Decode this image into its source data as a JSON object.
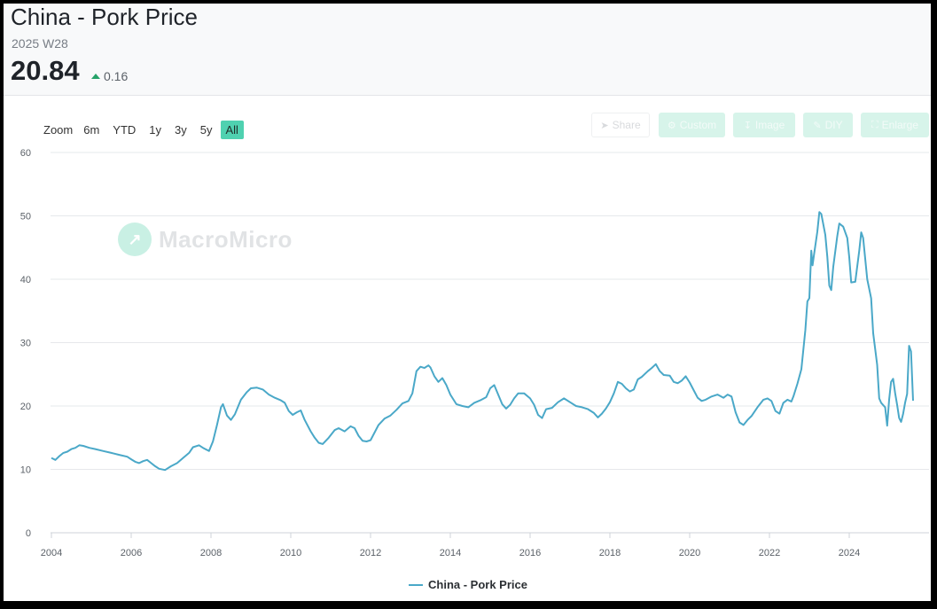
{
  "header": {
    "title": "China - Pork Price",
    "period": "2025 W28",
    "value": "20.84",
    "change": "0.16"
  },
  "zoom": {
    "label": "Zoom",
    "buttons": [
      "6m",
      "YTD",
      "1y",
      "3y",
      "5y",
      "All"
    ],
    "active": "All"
  },
  "tools": {
    "share": "Share",
    "custom": "Custom",
    "image": "Image",
    "diy": "DIY",
    "enlarge": "Enlarge"
  },
  "watermark": "MacroMicro",
  "colors": {
    "line": "#4aa8c8",
    "zoom_active": "#4fd1b0",
    "up": "#26a269"
  },
  "chart_data": {
    "type": "line",
    "xlim": [
      2004,
      2025.6
    ],
    "ylim": [
      0,
      60
    ],
    "yticks": [
      0,
      10,
      20,
      30,
      40,
      50,
      60
    ],
    "xticks": [
      2004,
      2006,
      2008,
      2010,
      2012,
      2014,
      2016,
      2018,
      2020,
      2022,
      2024
    ],
    "grid": "horizontal",
    "legend": "bottom-center",
    "series": [
      {
        "name": "China - Pork Price",
        "points": [
          [
            2004.0,
            11.8
          ],
          [
            2004.1,
            11.5
          ],
          [
            2004.2,
            12.1
          ],
          [
            2004.3,
            12.6
          ],
          [
            2004.4,
            12.8
          ],
          [
            2004.5,
            13.2
          ],
          [
            2004.6,
            13.4
          ],
          [
            2004.7,
            13.8
          ],
          [
            2004.8,
            13.7
          ],
          [
            2004.95,
            13.4
          ],
          [
            2005.1,
            13.2
          ],
          [
            2005.3,
            12.9
          ],
          [
            2005.5,
            12.6
          ],
          [
            2005.7,
            12.3
          ],
          [
            2005.9,
            12.0
          ],
          [
            2006.0,
            11.6
          ],
          [
            2006.1,
            11.2
          ],
          [
            2006.2,
            11.0
          ],
          [
            2006.3,
            11.3
          ],
          [
            2006.4,
            11.5
          ],
          [
            2006.5,
            11.0
          ],
          [
            2006.6,
            10.5
          ],
          [
            2006.7,
            10.1
          ],
          [
            2006.85,
            9.9
          ],
          [
            2007.0,
            10.5
          ],
          [
            2007.15,
            11.0
          ],
          [
            2007.3,
            11.8
          ],
          [
            2007.45,
            12.6
          ],
          [
            2007.55,
            13.5
          ],
          [
            2007.7,
            13.8
          ],
          [
            2007.8,
            13.4
          ],
          [
            2007.95,
            12.9
          ],
          [
            2008.05,
            14.4
          ],
          [
            2008.15,
            17.0
          ],
          [
            2008.25,
            19.8
          ],
          [
            2008.3,
            20.3
          ],
          [
            2008.4,
            18.5
          ],
          [
            2008.5,
            17.8
          ],
          [
            2008.6,
            18.7
          ],
          [
            2008.75,
            21.0
          ],
          [
            2008.9,
            22.2
          ],
          [
            2009.0,
            22.8
          ],
          [
            2009.15,
            22.9
          ],
          [
            2009.3,
            22.6
          ],
          [
            2009.45,
            21.8
          ],
          [
            2009.6,
            21.3
          ],
          [
            2009.75,
            20.9
          ],
          [
            2009.85,
            20.5
          ],
          [
            2009.95,
            19.2
          ],
          [
            2010.05,
            18.6
          ],
          [
            2010.15,
            19.0
          ],
          [
            2010.25,
            19.3
          ],
          [
            2010.35,
            17.8
          ],
          [
            2010.5,
            16.0
          ],
          [
            2010.6,
            15.0
          ],
          [
            2010.7,
            14.2
          ],
          [
            2010.8,
            14.0
          ],
          [
            2010.95,
            15.0
          ],
          [
            2011.1,
            16.2
          ],
          [
            2011.2,
            16.5
          ],
          [
            2011.35,
            16.0
          ],
          [
            2011.5,
            16.8
          ],
          [
            2011.6,
            16.5
          ],
          [
            2011.7,
            15.3
          ],
          [
            2011.8,
            14.5
          ],
          [
            2011.9,
            14.4
          ],
          [
            2012.0,
            14.6
          ],
          [
            2012.1,
            15.8
          ],
          [
            2012.2,
            17.0
          ],
          [
            2012.35,
            18.0
          ],
          [
            2012.5,
            18.5
          ],
          [
            2012.65,
            19.4
          ],
          [
            2012.8,
            20.4
          ],
          [
            2012.95,
            20.8
          ],
          [
            2013.05,
            22.0
          ],
          [
            2013.15,
            25.5
          ],
          [
            2013.25,
            26.2
          ],
          [
            2013.35,
            26.0
          ],
          [
            2013.45,
            26.4
          ],
          [
            2013.5,
            26.1
          ],
          [
            2013.6,
            24.7
          ],
          [
            2013.7,
            23.8
          ],
          [
            2013.8,
            24.4
          ],
          [
            2013.9,
            23.3
          ],
          [
            2014.0,
            21.8
          ],
          [
            2014.15,
            20.3
          ],
          [
            2014.3,
            20.0
          ],
          [
            2014.45,
            19.8
          ],
          [
            2014.6,
            20.5
          ],
          [
            2014.75,
            20.9
          ],
          [
            2014.9,
            21.4
          ],
          [
            2015.0,
            22.8
          ],
          [
            2015.1,
            23.3
          ],
          [
            2015.2,
            21.8
          ],
          [
            2015.3,
            20.3
          ],
          [
            2015.4,
            19.6
          ],
          [
            2015.5,
            20.2
          ],
          [
            2015.6,
            21.2
          ],
          [
            2015.7,
            22.0
          ],
          [
            2015.85,
            22.0
          ],
          [
            2016.0,
            21.2
          ],
          [
            2016.1,
            20.2
          ],
          [
            2016.2,
            18.6
          ],
          [
            2016.3,
            18.1
          ],
          [
            2016.4,
            19.5
          ],
          [
            2016.55,
            19.7
          ],
          [
            2016.7,
            20.6
          ],
          [
            2016.85,
            21.2
          ],
          [
            2017.0,
            20.6
          ],
          [
            2017.15,
            20.0
          ],
          [
            2017.3,
            19.8
          ],
          [
            2017.45,
            19.5
          ],
          [
            2017.6,
            18.9
          ],
          [
            2017.7,
            18.2
          ],
          [
            2017.8,
            18.8
          ],
          [
            2017.9,
            19.6
          ],
          [
            2018.0,
            20.6
          ],
          [
            2018.1,
            22.0
          ],
          [
            2018.2,
            23.8
          ],
          [
            2018.3,
            23.5
          ],
          [
            2018.4,
            22.8
          ],
          [
            2018.5,
            22.3
          ],
          [
            2018.6,
            22.6
          ],
          [
            2018.7,
            24.2
          ],
          [
            2018.8,
            24.6
          ],
          [
            2018.95,
            25.5
          ],
          [
            2019.05,
            26.0
          ],
          [
            2019.15,
            26.6
          ],
          [
            2019.25,
            25.5
          ],
          [
            2019.35,
            24.9
          ],
          [
            2019.5,
            24.8
          ],
          [
            2019.6,
            23.8
          ],
          [
            2019.7,
            23.6
          ],
          [
            2019.8,
            24.0
          ],
          [
            2019.9,
            24.7
          ],
          [
            2020.0,
            23.7
          ],
          [
            2020.1,
            22.5
          ],
          [
            2020.2,
            21.3
          ],
          [
            2020.3,
            20.8
          ],
          [
            2020.4,
            21.0
          ],
          [
            2020.55,
            21.5
          ],
          [
            2020.7,
            21.8
          ],
          [
            2020.85,
            21.3
          ],
          [
            2020.95,
            21.8
          ],
          [
            2021.05,
            21.5
          ],
          [
            2021.15,
            19.0
          ],
          [
            2021.25,
            17.4
          ],
          [
            2021.35,
            17.0
          ],
          [
            2021.45,
            17.8
          ],
          [
            2021.55,
            18.4
          ],
          [
            2021.7,
            19.8
          ],
          [
            2021.85,
            21.0
          ],
          [
            2021.95,
            21.2
          ],
          [
            2022.05,
            20.8
          ],
          [
            2022.15,
            19.2
          ],
          [
            2022.25,
            18.8
          ],
          [
            2022.35,
            20.5
          ],
          [
            2022.45,
            21.0
          ],
          [
            2022.55,
            20.7
          ],
          [
            2022.6,
            21.5
          ],
          [
            2022.7,
            23.5
          ],
          [
            2022.8,
            25.8
          ],
          [
            2022.9,
            32.0
          ],
          [
            2022.95,
            36.5
          ],
          [
            2023.0,
            37.0
          ],
          [
            2023.05,
            44.5
          ],
          [
            2023.08,
            42.2
          ],
          [
            2023.12,
            44.0
          ],
          [
            2023.2,
            47.5
          ],
          [
            2023.25,
            50.6
          ],
          [
            2023.3,
            50.3
          ],
          [
            2023.4,
            47.0
          ],
          [
            2023.45,
            43.5
          ],
          [
            2023.5,
            39.0
          ],
          [
            2023.55,
            38.3
          ],
          [
            2023.6,
            42.0
          ],
          [
            2023.7,
            46.8
          ],
          [
            2023.75,
            48.8
          ],
          [
            2023.85,
            48.3
          ],
          [
            2023.95,
            46.5
          ],
          [
            2024.0,
            43.5
          ],
          [
            2024.05,
            39.5
          ],
          [
            2024.15,
            39.6
          ],
          [
            2024.25,
            44.5
          ],
          [
            2024.3,
            47.4
          ],
          [
            2024.35,
            46.5
          ],
          [
            2024.45,
            40.0
          ],
          [
            2024.55,
            37.0
          ],
          [
            2024.6,
            31.5
          ],
          [
            2024.7,
            26.5
          ],
          [
            2024.75,
            21.2
          ],
          [
            2024.8,
            20.5
          ],
          [
            2024.9,
            19.8
          ],
          [
            2024.95,
            16.9
          ],
          [
            2025.0,
            21.0
          ],
          [
            2025.05,
            23.8
          ],
          [
            2025.1,
            24.3
          ],
          [
            2025.15,
            22.0
          ],
          [
            2025.2,
            20.2
          ],
          [
            2025.25,
            18.1
          ],
          [
            2025.3,
            17.5
          ],
          [
            2025.35,
            18.7
          ],
          [
            2025.4,
            20.5
          ],
          [
            2025.45,
            21.9
          ],
          [
            2025.5,
            29.5
          ],
          [
            2025.55,
            28.6
          ],
          [
            2025.6,
            20.84
          ]
        ]
      }
    ]
  }
}
